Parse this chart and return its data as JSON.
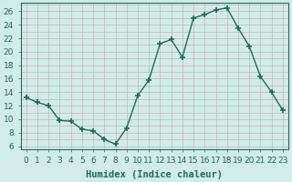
{
  "x": [
    0,
    1,
    2,
    3,
    4,
    5,
    6,
    7,
    8,
    9,
    10,
    11,
    12,
    13,
    14,
    15,
    16,
    17,
    18,
    19,
    20,
    21,
    22,
    23
  ],
  "y": [
    13.2,
    12.5,
    12.0,
    9.8,
    9.7,
    8.5,
    8.3,
    7.0,
    6.3,
    8.7,
    13.5,
    15.8,
    21.2,
    21.8,
    19.2,
    25.0,
    25.5,
    26.2,
    26.5,
    23.5,
    20.8,
    16.3,
    14.0,
    11.3
  ],
  "bg_color": "#d0ece8",
  "grid_color": "#c4b4b4",
  "line_color": "#1e6b5a",
  "marker_color": "#1e6b5a",
  "xlabel": "Humidex (Indice chaleur)",
  "ylim": [
    5.5,
    27.2
  ],
  "xlim": [
    -0.5,
    23.5
  ],
  "yticks": [
    6,
    8,
    10,
    12,
    14,
    16,
    18,
    20,
    22,
    24,
    26
  ],
  "xticks": [
    0,
    1,
    2,
    3,
    4,
    5,
    6,
    7,
    8,
    9,
    10,
    11,
    12,
    13,
    14,
    15,
    16,
    17,
    18,
    19,
    20,
    21,
    22,
    23
  ],
  "xlabel_fontsize": 7.5,
  "tick_fontsize": 6.5,
  "line_width": 1.0,
  "marker_size": 4.5
}
